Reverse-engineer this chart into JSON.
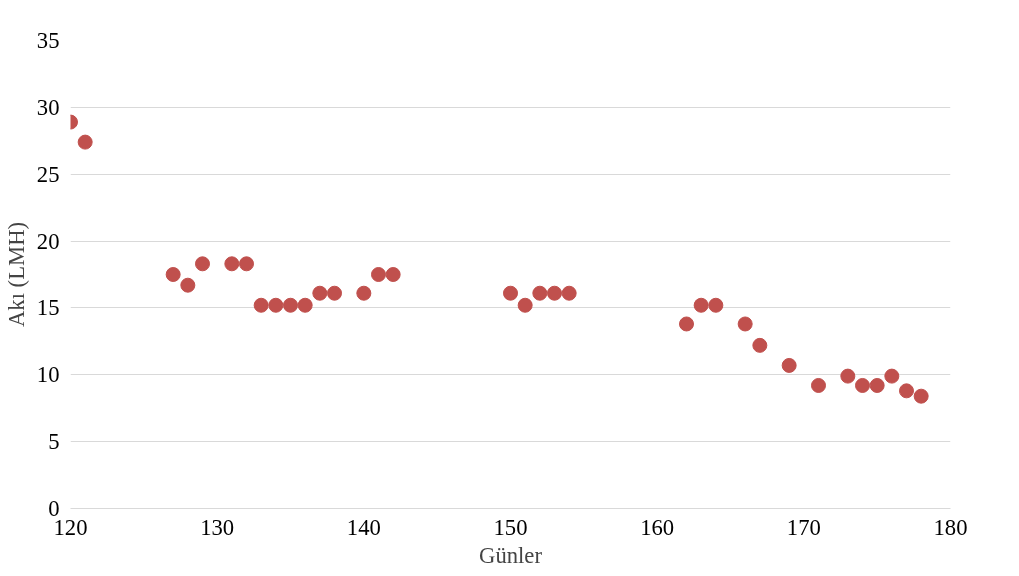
{
  "chart_data": {
    "type": "scatter",
    "xlabel": "Günler",
    "ylabel": "Akı (LMH)",
    "x": [
      120,
      121,
      127,
      128,
      129,
      131,
      132,
      133,
      134,
      135,
      136,
      137,
      138,
      140,
      141,
      142,
      150,
      151,
      152,
      153,
      154,
      162,
      163,
      164,
      166,
      167,
      169,
      171,
      173,
      174,
      175,
      176,
      177,
      178
    ],
    "series": [
      {
        "color": "#c0504d",
        "values": [
          28.9,
          27.4,
          17.5,
          16.7,
          18.3,
          18.3,
          18.3,
          15.2,
          15.2,
          15.2,
          15.2,
          16.1,
          16.1,
          16.1,
          17.5,
          17.5,
          16.1,
          15.2,
          16.1,
          16.1,
          16.1,
          13.8,
          15.2,
          15.2,
          13.8,
          12.2,
          10.7,
          9.2,
          9.9,
          9.2,
          9.2,
          9.9,
          8.8,
          8.4
        ]
      }
    ],
    "xlim": [
      120,
      180
    ],
    "xticks": [
      120,
      130,
      140,
      150,
      160,
      170,
      180
    ],
    "ylim": [
      0,
      35
    ],
    "yticks": [
      0,
      5,
      10,
      15,
      20,
      25,
      30,
      35
    ],
    "grid": "y",
    "marker": "circle"
  }
}
